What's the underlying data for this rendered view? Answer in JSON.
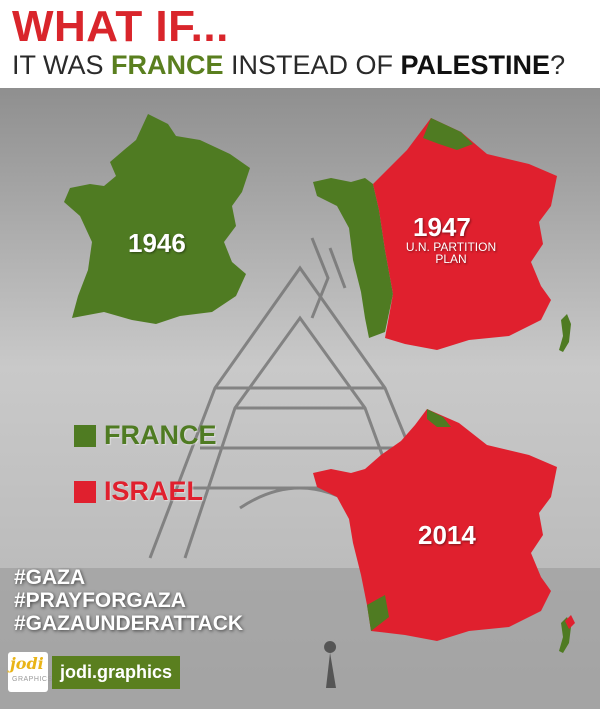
{
  "header": {
    "title": "WHAT IF...",
    "subtitle_part1": "IT WAS ",
    "subtitle_france": "FRANCE",
    "subtitle_part2": " INSTEAD OF ",
    "subtitle_palestine": "PALESTINE",
    "subtitle_part3": "?"
  },
  "maps": {
    "m1946": {
      "year": "1946"
    },
    "m1947": {
      "year": "1947",
      "caption_line1": "U.N. PARTITION",
      "caption_line2": "PLAN"
    },
    "m2014": {
      "year": "2014"
    }
  },
  "legend": {
    "france": {
      "label": "FRANCE",
      "color": "#4f7b22"
    },
    "israel": {
      "label": "ISRAEL",
      "color": "#e0202e"
    }
  },
  "hashtags": [
    "#GAZA",
    "#PRAYFORGAZA",
    "#GAZAUNDERATTACK"
  ],
  "brand": {
    "logo_mark": "jodi",
    "logo_sub": "GRAPHICS",
    "name": "jodi.graphics"
  },
  "colors": {
    "title_red": "#d9252b",
    "green": "#4f7b22",
    "red": "#e0202e"
  }
}
